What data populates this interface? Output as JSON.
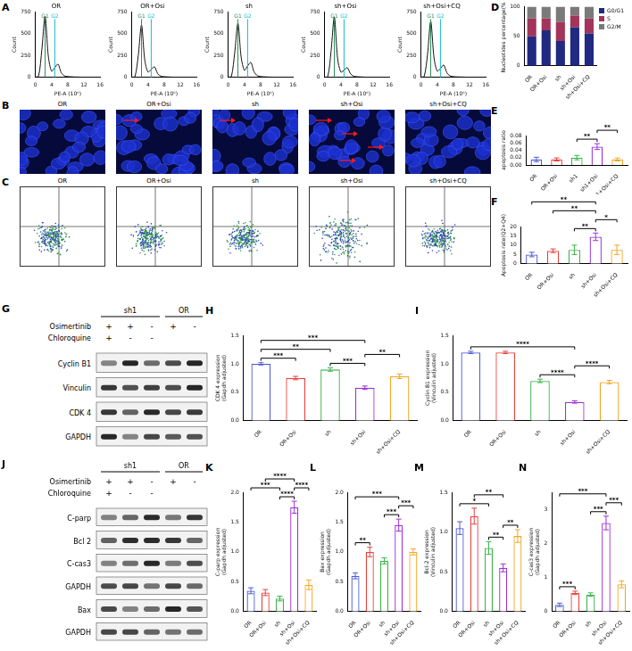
{
  "chart_data": [
    {
      "type": "line",
      "panel": "A",
      "title": "OR",
      "xlabel": "PE-A (10⁶)",
      "ylabel": "Count",
      "x": [
        0,
        0.8,
        1.6,
        2.4,
        3.2,
        4,
        4.8,
        5.6,
        6.4,
        7.2,
        8,
        8.8,
        9.6,
        10.4,
        11.2,
        12,
        12.8,
        13.6,
        14.4,
        15.2,
        16
      ],
      "values": [
        0,
        15,
        320,
        700,
        240,
        70,
        110,
        150,
        50,
        15,
        8,
        5,
        3,
        2,
        1,
        0,
        0,
        0,
        0,
        0,
        0
      ],
      "color": "#111111",
      "xlim": [
        0,
        16
      ],
      "xticks": [
        0,
        4,
        8,
        12,
        16
      ],
      "ylim": [
        0,
        750
      ],
      "yticks": [
        0,
        250,
        500,
        750
      ],
      "grid": false,
      "annotations": [
        {
          "text": "G1",
          "x": 2.4,
          "color": "#2e8b57"
        },
        {
          "text": "G2",
          "x": 4.8,
          "color": "#17becf"
        }
      ]
    },
    {
      "type": "line",
      "title": "OR+Osi",
      "xlabel": "PE-A (10⁶)",
      "ylabel": "Count",
      "x": [
        0,
        0.8,
        1.6,
        2.4,
        3.2,
        4,
        4.8,
        5.6,
        6.4,
        7.2,
        8,
        8.8,
        9.6,
        10.4,
        11.2,
        12,
        12.8,
        13.6,
        14.4,
        15.2,
        16
      ],
      "values": [
        0,
        10,
        250,
        600,
        200,
        60,
        90,
        120,
        40,
        12,
        6,
        4,
        2,
        1,
        1,
        0,
        0,
        0,
        0,
        0,
        0
      ],
      "color": "#111111",
      "xlim": [
        0,
        16
      ],
      "xticks": [
        0,
        4,
        8,
        12,
        16
      ],
      "ylim": [
        0,
        750
      ],
      "yticks": [
        0,
        250,
        500,
        750
      ],
      "grid": false,
      "annotations": [
        {
          "text": "G1",
          "x": 2.4,
          "color": "#2e8b57"
        },
        {
          "text": "G2",
          "x": 4.8,
          "color": "#17becf"
        }
      ]
    },
    {
      "type": "line",
      "title": "sh",
      "xlabel": "PE-A (10⁶)",
      "ylabel": "Count",
      "x": [
        0,
        0.8,
        1.6,
        2.4,
        3.2,
        4,
        4.8,
        5.6,
        6.4,
        7.2,
        8,
        8.8,
        9.6,
        10.4,
        11.2,
        12,
        12.8,
        13.6,
        14.4,
        15.2,
        16
      ],
      "values": [
        0,
        12,
        280,
        620,
        230,
        80,
        130,
        170,
        60,
        18,
        8,
        5,
        3,
        2,
        1,
        0,
        0,
        0,
        0,
        0,
        0
      ],
      "color": "#111111",
      "xlim": [
        0,
        16
      ],
      "xticks": [
        0,
        4,
        8,
        12,
        16
      ],
      "ylim": [
        0,
        750
      ],
      "yticks": [
        0,
        250,
        500,
        750
      ],
      "grid": false,
      "annotations": [
        {
          "text": "G1",
          "x": 2.4,
          "color": "#2e8b57"
        },
        {
          "text": "G2",
          "x": 4.8,
          "color": "#17becf"
        }
      ]
    },
    {
      "type": "line",
      "title": "sh+Osi",
      "xlabel": "PE-A (10⁶)",
      "ylabel": "Count",
      "x": [
        0,
        0.8,
        1.6,
        2.4,
        3.2,
        4,
        4.8,
        5.6,
        6.4,
        7.2,
        8,
        8.8,
        9.6,
        10.4,
        11.2,
        12,
        12.8,
        13.6,
        14.4,
        15.2,
        16
      ],
      "values": [
        0,
        10,
        300,
        690,
        220,
        60,
        80,
        110,
        40,
        12,
        6,
        4,
        2,
        1,
        1,
        0,
        0,
        0,
        0,
        0,
        0
      ],
      "color": "#111111",
      "xlim": [
        0,
        16
      ],
      "xticks": [
        0,
        4,
        8,
        12,
        16
      ],
      "ylim": [
        0,
        750
      ],
      "yticks": [
        0,
        250,
        500,
        750
      ],
      "grid": false,
      "annotations": [
        {
          "text": "G1",
          "x": 2.4,
          "color": "#2e8b57"
        },
        {
          "text": "G2",
          "x": 4.8,
          "color": "#17becf"
        }
      ]
    },
    {
      "type": "line",
      "title": "sh+Osi+CQ",
      "xlabel": "PE-A (10⁶)",
      "ylabel": "Count",
      "x": [
        0,
        0.8,
        1.6,
        2.4,
        3.2,
        4,
        4.8,
        5.6,
        6.4,
        7.2,
        8,
        8.8,
        9.6,
        10.4,
        11.2,
        12,
        12.8,
        13.6,
        14.4,
        15.2,
        16
      ],
      "values": [
        0,
        12,
        260,
        640,
        230,
        70,
        100,
        140,
        50,
        15,
        7,
        4,
        3,
        2,
        1,
        0,
        0,
        0,
        0,
        0,
        0
      ],
      "color": "#111111",
      "xlim": [
        0,
        16
      ],
      "xticks": [
        0,
        4,
        8,
        12,
        16
      ],
      "ylim": [
        0,
        750
      ],
      "yticks": [
        0,
        250,
        500,
        750
      ],
      "grid": false,
      "annotations": [
        {
          "text": "G1",
          "x": 2.4,
          "color": "#2e8b57"
        },
        {
          "text": "G2",
          "x": 4.8,
          "color": "#17becf"
        }
      ]
    },
    {
      "type": "bar",
      "panel": "D",
      "stacked": true,
      "ylabel": "Nucleotides percentage(%)",
      "categories": [
        "OR",
        "OR+Osi",
        "sh",
        "sh+Osi",
        "sh+Osi+CQ"
      ],
      "series": [
        {
          "name": "G0/G1",
          "color": "#1f2a80",
          "values": [
            50,
            60,
            42,
            65,
            55
          ]
        },
        {
          "name": "S",
          "color": "#a3345a",
          "values": [
            30,
            20,
            32,
            20,
            25
          ]
        },
        {
          "name": "G2/M",
          "color": "#7a7a7a",
          "values": [
            20,
            20,
            26,
            15,
            20
          ]
        }
      ],
      "ylim": [
        0,
        100
      ],
      "yticks": [
        0,
        50,
        100
      ],
      "grid": false,
      "legend": "right"
    },
    {
      "type": "bar",
      "panel": "E",
      "ylabel": "apoptosis ratio",
      "categories": [
        "OR",
        "OR+Osi",
        "sh1",
        "sh1+Osi",
        "sh1+Osi+CQ"
      ],
      "values": [
        0.015,
        0.015,
        0.02,
        0.05,
        0.015
      ],
      "errors": [
        0.006,
        0.004,
        0.006,
        0.008,
        0.004
      ],
      "colors": [
        "#4f5bd5",
        "#e8413c",
        "#3cb44b",
        "#9b30d9",
        "#f5a623"
      ],
      "ylim": [
        0,
        0.08
      ],
      "yticks": [
        {
          "value": 0,
          "label": "0.00"
        },
        0.02,
        0.04,
        0.06,
        0.08
      ],
      "grid": false,
      "significance": [
        {
          "from": 2,
          "to": 3,
          "label": "**"
        },
        {
          "from": 3,
          "to": 4,
          "label": "**"
        }
      ]
    },
    {
      "type": "bar",
      "panel": "F",
      "ylabel": "Apoptosis rate(Q2+Q4)",
      "categories": [
        "OR",
        "OR+Osi",
        "sh",
        "sh+Osi",
        "sh+Osi+CQ"
      ],
      "values": [
        5,
        7,
        7.5,
        14.5,
        7.5
      ],
      "errors": [
        1.2,
        1,
        2.5,
        2,
        2.5
      ],
      "colors": [
        "#4f5bd5",
        "#e8413c",
        "#3cb44b",
        "#9b30d9",
        "#f5a623"
      ],
      "ylim": [
        0,
        20
      ],
      "yticks": [
        0,
        5,
        10,
        15,
        20
      ],
      "grid": false,
      "significance": [
        {
          "from": 0,
          "to": 3,
          "label": "**"
        },
        {
          "from": 1,
          "to": 3,
          "label": "**"
        },
        {
          "from": 2,
          "to": 3,
          "label": "**"
        },
        {
          "from": 3,
          "to": 4,
          "label": "*"
        }
      ]
    },
    {
      "type": "bar",
      "panel": "H",
      "ylabel": "CDK 4 expression\n(Gapdh adjusted)",
      "categories": [
        "OR",
        "OR+Osi",
        "sh",
        "sh+Osi",
        "sh+Osi+CQ"
      ],
      "values": [
        1.0,
        0.75,
        0.9,
        0.58,
        0.78
      ],
      "errors": [
        0.02,
        0.03,
        0.03,
        0.03,
        0.04
      ],
      "colors": [
        "#4f5bd5",
        "#e8413c",
        "#3cb44b",
        "#9b30d9",
        "#f5a623"
      ],
      "ylim": [
        0,
        1.5
      ],
      "yticks": [
        {
          "value": 0,
          "label": "0.0"
        },
        0.5,
        {
          "value": 1,
          "label": "1.0"
        },
        1.5
      ],
      "grid": false,
      "significance": [
        {
          "from": 0,
          "to": 1,
          "label": "***"
        },
        {
          "from": 0,
          "to": 2,
          "label": "**"
        },
        {
          "from": 0,
          "to": 3,
          "label": "***"
        },
        {
          "from": 2,
          "to": 3,
          "label": "***"
        },
        {
          "from": 3,
          "to": 4,
          "label": "**"
        }
      ]
    },
    {
      "type": "bar",
      "panel": "I",
      "ylabel": "Cyclin B1 expression\n(Vinculin adjusted)",
      "categories": [
        "OR",
        "OR+Osi",
        "sh",
        "sh+Osi",
        "sh+Osi+CQ"
      ],
      "values": [
        1.2,
        1.2,
        0.7,
        0.33,
        0.68
      ],
      "errors": [
        0.02,
        0.02,
        0.03,
        0.02,
        0.03
      ],
      "colors": [
        "#4f5bd5",
        "#e8413c",
        "#3cb44b",
        "#9b30d9",
        "#f5a623"
      ],
      "ylim": [
        0,
        1.5
      ],
      "yticks": [
        {
          "value": 0,
          "label": "0.0"
        },
        0.5,
        {
          "value": 1,
          "label": "1.0"
        },
        1.5
      ],
      "grid": false,
      "significance": [
        {
          "from": 0,
          "to": 3,
          "label": "****"
        },
        {
          "from": 2,
          "to": 3,
          "label": "****"
        },
        {
          "from": 3,
          "to": 4,
          "label": "****"
        }
      ]
    },
    {
      "type": "bar",
      "panel": "K",
      "ylabel": "C-parp expression\n(Gapdh adjusted)",
      "categories": [
        "OR",
        "OR+Osi",
        "sh",
        "sh+Osi",
        "sh+Osi+CQ"
      ],
      "values": [
        0.35,
        0.32,
        0.22,
        1.75,
        0.45
      ],
      "errors": [
        0.05,
        0.05,
        0.04,
        0.1,
        0.08
      ],
      "colors": [
        "#4f5bd5",
        "#e8413c",
        "#3cb44b",
        "#9b30d9",
        "#f5a623"
      ],
      "ylim": [
        0,
        2
      ],
      "yticks": [
        {
          "value": 0,
          "label": "0.0"
        },
        0.5,
        {
          "value": 1,
          "label": "1.0"
        },
        1.5,
        {
          "value": 2,
          "label": "2.0"
        }
      ],
      "grid": false,
      "significance": [
        {
          "from": 0,
          "to": 2,
          "label": "***"
        },
        {
          "from": 1,
          "to": 3,
          "label": "****"
        },
        {
          "from": 2,
          "to": 3,
          "label": "****"
        },
        {
          "from": 3,
          "to": 4,
          "label": "****"
        }
      ]
    },
    {
      "type": "bar",
      "panel": "L",
      "ylabel": "Bax expression\n(Gapdh adjusted)",
      "categories": [
        "OR",
        "OR+Osi",
        "sh",
        "sh+Osi",
        "sh+Osi+CQ"
      ],
      "values": [
        0.6,
        1.0,
        0.85,
        1.45,
        1.0
      ],
      "errors": [
        0.05,
        0.08,
        0.05,
        0.1,
        0.05
      ],
      "colors": [
        "#4f5bd5",
        "#e8413c",
        "#3cb44b",
        "#9b30d9",
        "#f5a623"
      ],
      "ylim": [
        0,
        2
      ],
      "yticks": [
        {
          "value": 0,
          "label": "0.0"
        },
        0.5,
        {
          "value": 1,
          "label": "1.0"
        },
        1.5,
        {
          "value": 2,
          "label": "2.0"
        }
      ],
      "grid": false,
      "significance": [
        {
          "from": 0,
          "to": 1,
          "label": "**"
        },
        {
          "from": 0,
          "to": 3,
          "label": "***"
        },
        {
          "from": 2,
          "to": 3,
          "label": "***"
        },
        {
          "from": 3,
          "to": 4,
          "label": "***"
        }
      ]
    },
    {
      "type": "bar",
      "panel": "M",
      "ylabel": "Bcl-2 expression\n(Vinculin adjusted)",
      "categories": [
        "OR",
        "OR+Osi",
        "sh",
        "sh+Osi",
        "sh+Osi+CQ"
      ],
      "values": [
        1.05,
        1.2,
        0.8,
        0.55,
        0.95
      ],
      "errors": [
        0.08,
        0.1,
        0.08,
        0.05,
        0.08
      ],
      "colors": [
        "#4f5bd5",
        "#e8413c",
        "#3cb44b",
        "#9b30d9",
        "#f5a623"
      ],
      "ylim": [
        0,
        1.5
      ],
      "yticks": [
        {
          "value": 0,
          "label": "0.0"
        },
        0.5,
        {
          "value": 1,
          "label": "1.0"
        },
        1.5
      ],
      "grid": false,
      "significance": [
        {
          "from": 0,
          "to": 2,
          "label": "*"
        },
        {
          "from": 1,
          "to": 3,
          "label": "**"
        },
        {
          "from": 2,
          "to": 3,
          "label": "**"
        },
        {
          "from": 3,
          "to": 4,
          "label": "**"
        }
      ]
    },
    {
      "type": "bar",
      "panel": "N",
      "ylabel": "C-cas3 expression\n(Gapdh adjusted)",
      "categories": [
        "OR",
        "OR+Osi",
        "sh",
        "sh+Osi",
        "sh+Osi+CQ"
      ],
      "values": [
        0.2,
        0.55,
        0.5,
        2.6,
        0.8
      ],
      "errors": [
        0.05,
        0.05,
        0.05,
        0.2,
        0.1
      ],
      "colors": [
        "#4f5bd5",
        "#e8413c",
        "#3cb44b",
        "#9b30d9",
        "#f5a623"
      ],
      "ylim": [
        0,
        3.5
      ],
      "yticks": [
        0,
        1,
        2,
        3
      ],
      "grid": false,
      "significance": [
        {
          "from": 0,
          "to": 1,
          "label": "***"
        },
        {
          "from": 0,
          "to": 3,
          "label": "***"
        },
        {
          "from": 2,
          "to": 3,
          "label": "***"
        },
        {
          "from": 3,
          "to": 4,
          "label": "***"
        }
      ]
    }
  ],
  "fluorescence_images": {
    "panel": "B",
    "titles": [
      "OR",
      "OR+Osi",
      "sh",
      "sh+Osi",
      "sh+Osi+CQ"
    ],
    "arrows": [
      0,
      1,
      1,
      4,
      0
    ]
  },
  "flow_scatter": {
    "panel": "C",
    "titles": [
      "OR",
      "OR+Osi",
      "sh",
      "sh+Osi",
      "sh+Osi+CQ"
    ]
  },
  "blots": [
    {
      "panel": "G",
      "groups": [
        "sh1",
        "OR"
      ],
      "group_sizes": [
        3,
        2
      ],
      "treatments": [
        {
          "name": "Osimertinib",
          "signs": [
            "+",
            "+",
            "-",
            "+",
            "-"
          ]
        },
        {
          "name": "Chloroquine",
          "signs": [
            "+",
            "-",
            "-",
            null,
            null
          ]
        }
      ],
      "bands": [
        "Cyclin B1",
        "Vinculin",
        "CDK 4",
        "GAPDH"
      ]
    },
    {
      "panel": "J",
      "groups": [
        "sh1",
        "OR"
      ],
      "group_sizes": [
        3,
        2
      ],
      "treatments": [
        {
          "name": "Osimertinib",
          "signs": [
            "+",
            "+",
            "-",
            "+",
            "-"
          ]
        },
        {
          "name": "Chloroquine",
          "signs": [
            "+",
            "-",
            "-",
            null,
            null
          ]
        }
      ],
      "bands": [
        "C-parp",
        "Bcl 2",
        "C-cas3",
        "GAPDH",
        "Bax",
        "GAPDH"
      ]
    }
  ]
}
